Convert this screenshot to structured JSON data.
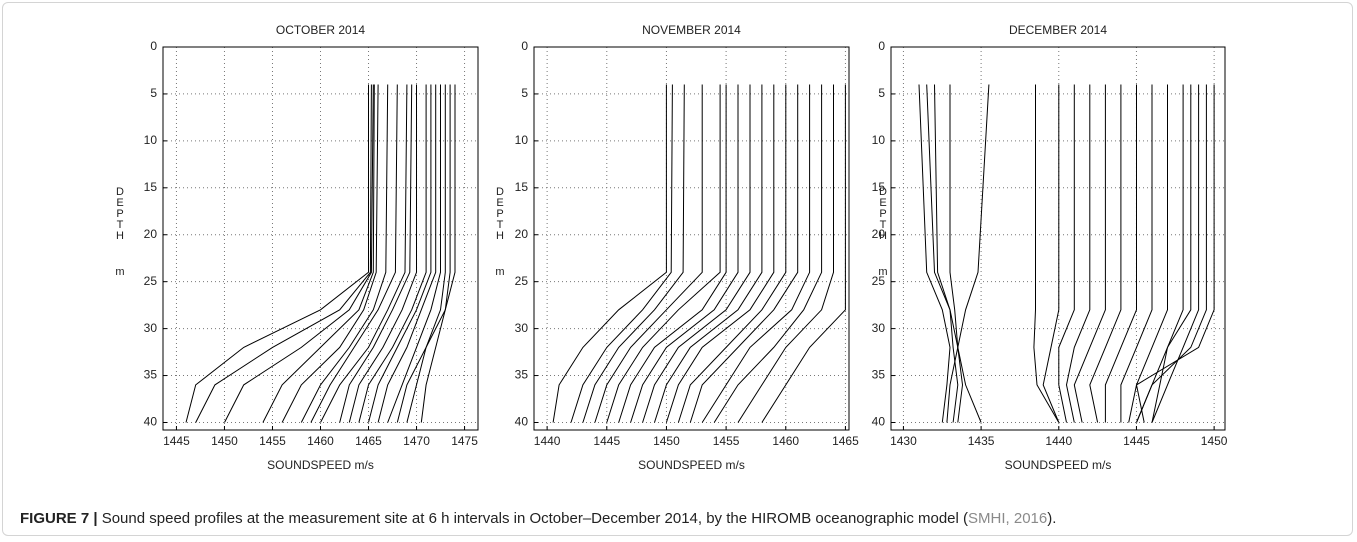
{
  "chart_data": [
    {
      "type": "line",
      "title": "OCTOBER 2014",
      "xlabel": "SOUNDSPEED m/s",
      "ylabel": "DEPTH",
      "ylabel_unit": "m",
      "xlim": [
        1443.6,
        1476.4
      ],
      "xticks": [
        1445,
        1450,
        1455,
        1460,
        1465,
        1470,
        1475
      ],
      "ylim": [
        0,
        40.8
      ],
      "yticks": [
        0,
        5,
        10,
        15,
        20,
        25,
        30,
        35,
        40
      ],
      "y_inverted": true,
      "grid": true,
      "color": "#000000",
      "depth": [
        4,
        24,
        28,
        32,
        36,
        40
      ],
      "series": [
        {
          "values": [
            1465,
            1465,
            1460,
            1452,
            1447,
            1446
          ]
        },
        {
          "values": [
            1465.3,
            1465.2,
            1462,
            1455,
            1449,
            1447
          ]
        },
        {
          "values": [
            1465.5,
            1465.3,
            1463,
            1458,
            1452,
            1450
          ]
        },
        {
          "values": [
            1465.6,
            1465.5,
            1464,
            1460,
            1456,
            1454
          ]
        },
        {
          "values": [
            1466,
            1465.8,
            1464.5,
            1462,
            1458,
            1456
          ]
        },
        {
          "values": [
            1467,
            1466.8,
            1465.5,
            1463,
            1460,
            1458
          ]
        },
        {
          "values": [
            1468,
            1467.8,
            1466,
            1463.5,
            1461,
            1459
          ]
        },
        {
          "values": [
            1469,
            1468.8,
            1467,
            1465,
            1462,
            1460
          ]
        },
        {
          "values": [
            1469.5,
            1469.3,
            1467.5,
            1465.5,
            1463,
            1462
          ]
        },
        {
          "values": [
            1470,
            1470,
            1468.5,
            1466.5,
            1464,
            1463
          ]
        },
        {
          "values": [
            1471,
            1471,
            1469.5,
            1467.5,
            1465,
            1464
          ]
        },
        {
          "values": [
            1471.5,
            1471.5,
            1470,
            1468,
            1466,
            1465
          ]
        },
        {
          "values": [
            1472,
            1472,
            1470.5,
            1469,
            1467,
            1466
          ]
        },
        {
          "values": [
            1472.5,
            1472.5,
            1471.5,
            1470,
            1468.5,
            1467
          ]
        },
        {
          "values": [
            1473,
            1473,
            1472.5,
            1471,
            1470,
            1469
          ]
        },
        {
          "values": [
            1473.5,
            1473.5,
            1473,
            1472,
            1471,
            1470.5
          ]
        },
        {
          "values": [
            1474,
            1474,
            1473,
            1471,
            1469,
            1468
          ]
        }
      ]
    },
    {
      "type": "line",
      "title": "NOVEMBER 2014",
      "xlabel": "SOUNDSPEED m/s",
      "ylabel": "DEPTH",
      "ylabel_unit": "m",
      "xlim": [
        1438.9,
        1465.3
      ],
      "xticks": [
        1440,
        1445,
        1450,
        1455,
        1460,
        1465
      ],
      "ylim": [
        0,
        40.8
      ],
      "yticks": [
        0,
        5,
        10,
        15,
        20,
        25,
        30,
        35,
        40
      ],
      "y_inverted": true,
      "grid": true,
      "color": "#000000",
      "depth": [
        4,
        24,
        28,
        32,
        36,
        40
      ],
      "series": [
        {
          "values": [
            1450,
            1450,
            1446,
            1443,
            1441,
            1440.5
          ]
        },
        {
          "values": [
            1450.5,
            1450.4,
            1448,
            1445,
            1443,
            1442
          ]
        },
        {
          "values": [
            1451.5,
            1451.4,
            1449,
            1446,
            1444,
            1443
          ]
        },
        {
          "values": [
            1453,
            1453,
            1450,
            1447,
            1445,
            1444
          ]
        },
        {
          "values": [
            1454.5,
            1454.5,
            1451,
            1448,
            1446,
            1445
          ]
        },
        {
          "values": [
            1455,
            1455,
            1453,
            1449,
            1447,
            1446
          ]
        },
        {
          "values": [
            1456,
            1456,
            1454,
            1450,
            1448,
            1447
          ]
        },
        {
          "values": [
            1457,
            1457,
            1455,
            1451,
            1449,
            1448
          ]
        },
        {
          "values": [
            1458,
            1458,
            1456,
            1452,
            1450,
            1449
          ]
        },
        {
          "values": [
            1459,
            1459,
            1457,
            1453,
            1451,
            1450
          ]
        },
        {
          "values": [
            1460,
            1460,
            1458,
            1455,
            1452,
            1451
          ]
        },
        {
          "values": [
            1461,
            1461,
            1459,
            1456,
            1453,
            1452
          ]
        },
        {
          "values": [
            1462,
            1462,
            1460.5,
            1457,
            1455,
            1453
          ]
        },
        {
          "values": [
            1463,
            1463,
            1461.5,
            1459,
            1456,
            1454
          ]
        },
        {
          "values": [
            1464,
            1464,
            1463,
            1460,
            1458,
            1456
          ]
        },
        {
          "values": [
            1465,
            1465,
            1465,
            1462,
            1460,
            1458
          ]
        }
      ]
    },
    {
      "type": "line",
      "title": "DECEMBER 2014",
      "xlabel": "SOUNDSPEED m/s",
      "ylabel": "DEPTH",
      "ylabel_unit": "m",
      "xlim": [
        1429.2,
        1450.7
      ],
      "xticks": [
        1430,
        1435,
        1440,
        1445,
        1450
      ],
      "ylim": [
        0,
        40.8
      ],
      "yticks": [
        0,
        5,
        10,
        15,
        20,
        25,
        30,
        35,
        40
      ],
      "y_inverted": true,
      "grid": true,
      "color": "#000000",
      "depth": [
        4,
        24,
        28,
        32,
        36,
        40
      ],
      "series": [
        {
          "values": [
            1431,
            1431.5,
            1432.5,
            1433,
            1432.8,
            1432.5
          ]
        },
        {
          "values": [
            1431.5,
            1432,
            1433,
            1433.5,
            1433,
            1432.8
          ]
        },
        {
          "values": [
            1432,
            1432.2,
            1433,
            1433.2,
            1433.5,
            1433.2
          ]
        },
        {
          "values": [
            1433,
            1433,
            1433.3,
            1433.5,
            1433.8,
            1433.5
          ]
        },
        {
          "values": [
            1435.5,
            1434.8,
            1434,
            1433.5,
            1434,
            1435
          ]
        },
        {
          "values": [
            1438.5,
            1438.5,
            1438.5,
            1438.4,
            1438.6,
            1440
          ]
        },
        {
          "values": [
            1440,
            1440,
            1440,
            1439.5,
            1439,
            1440
          ]
        },
        {
          "values": [
            1441,
            1441,
            1441,
            1440,
            1440,
            1440.5
          ]
        },
        {
          "values": [
            1442,
            1442,
            1442,
            1441,
            1440.5,
            1441
          ]
        },
        {
          "values": [
            1443,
            1443,
            1443,
            1442,
            1441,
            1441.5
          ]
        },
        {
          "values": [
            1444,
            1444,
            1444,
            1443,
            1442,
            1442.5
          ]
        },
        {
          "values": [
            1445,
            1445,
            1445,
            1444,
            1443,
            1443
          ]
        },
        {
          "values": [
            1446,
            1446,
            1446,
            1445,
            1444,
            1444
          ]
        },
        {
          "values": [
            1447,
            1447,
            1447,
            1446,
            1445,
            1444.5
          ]
        },
        {
          "values": [
            1448,
            1448,
            1448,
            1447,
            1446,
            1445
          ]
        },
        {
          "values": [
            1448.5,
            1448.5,
            1448.5,
            1447,
            1446.5,
            1446
          ]
        },
        {
          "values": [
            1449,
            1449,
            1449,
            1448,
            1447,
            1446
          ]
        },
        {
          "values": [
            1449.5,
            1449.5,
            1449.5,
            1448.5,
            1446,
            1445
          ]
        },
        {
          "values": [
            1450,
            1450,
            1450,
            1449,
            1445,
            1445.5
          ]
        }
      ]
    }
  ],
  "caption": {
    "label": "FIGURE 7 |",
    "text": " Sound speed profiles at the measurement site at 6 h intervals in October–December 2014, by the HIROMB oceanographic model (",
    "citation": "SMHI, 2016",
    "end": ")."
  }
}
